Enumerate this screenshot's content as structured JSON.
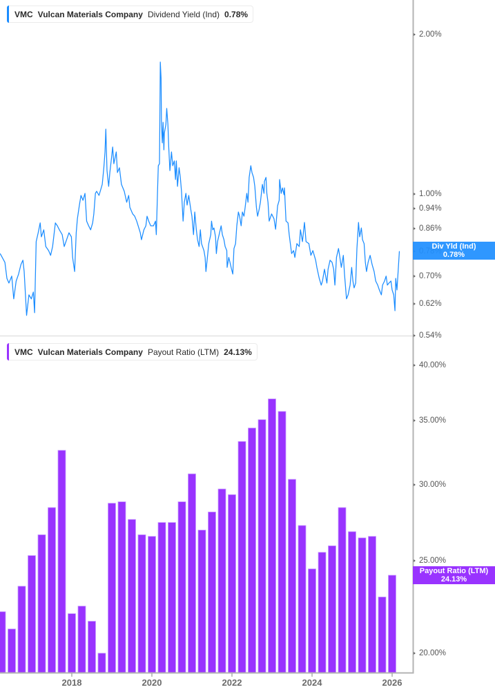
{
  "panels": [
    {
      "legend": {
        "ticker": "VMC",
        "company": "Vulcan Materials Company",
        "metric": "Dividend Yield (Ind)",
        "value": "0.78%"
      },
      "flag": {
        "label": "Div Yld (Ind)",
        "value": "0.78%"
      }
    },
    {
      "legend": {
        "ticker": "VMC",
        "company": "Vulcan Materials Company",
        "metric": "Payout Ratio (LTM)",
        "value": "24.13%"
      },
      "flag": {
        "label": "Payout Ratio (LTM)",
        "value": "24.13%"
      }
    }
  ],
  "colors": {
    "dividend_yield": "#1a8cff",
    "dividend_yield_flag": "rgba(31,143,255,0.93)",
    "payout_ratio": "#9933ff",
    "payout_ratio_border": "#c79cff",
    "payout_ratio_flag": "#9933ff"
  },
  "chart_data": [
    {
      "type": "line",
      "title": "VMC Vulcan Materials Company Dividend Yield (Ind) 0.78%",
      "series_name": "Dividend Yield (Ind)",
      "xlabel": "",
      "ylabel": "",
      "y_scale": "log",
      "xlim": [
        2016.207,
        2026.517
      ],
      "ylim": [
        0.54,
        2.325
      ],
      "grid": false,
      "legend_position": "top-left",
      "yticks": [
        {
          "value": 2.0,
          "label": "2.00%"
        },
        {
          "value": 1.0,
          "label": "1.00%"
        },
        {
          "value": 0.94,
          "label": "0.94%"
        },
        {
          "value": 0.86,
          "label": "0.86%"
        },
        {
          "value": 0.78,
          "label": "0.78%"
        },
        {
          "value": 0.7,
          "label": "0.70%"
        },
        {
          "value": 0.62,
          "label": "0.62%"
        },
        {
          "value": 0.54,
          "label": "0.54%"
        }
      ],
      "last_value": 0.78,
      "x": [
        2016.21,
        2016.33,
        2016.38,
        2016.43,
        2016.5,
        2016.55,
        2016.61,
        2016.67,
        2016.73,
        2016.78,
        2016.81,
        2016.87,
        2016.93,
        2016.99,
        2017.04,
        2017.07,
        2017.11,
        2017.16,
        2017.21,
        2017.24,
        2017.3,
        2017.35,
        2017.42,
        2017.47,
        2017.52,
        2017.59,
        2017.64,
        2017.69,
        2017.76,
        2017.81,
        2017.87,
        2017.93,
        2017.99,
        2018.02,
        2018.07,
        2018.11,
        2018.14,
        2018.19,
        2018.23,
        2018.28,
        2018.33,
        2018.37,
        2018.42,
        2018.47,
        2018.52,
        2018.55,
        2018.59,
        2018.62,
        2018.68,
        2018.71,
        2018.76,
        2018.8,
        2018.83,
        2018.85,
        2018.88,
        2018.92,
        2018.95,
        2018.99,
        2019.02,
        2019.05,
        2019.11,
        2019.14,
        2019.19,
        2019.24,
        2019.31,
        2019.37,
        2019.42,
        2019.45,
        2019.52,
        2019.57,
        2019.62,
        2019.71,
        2019.74,
        2019.8,
        2019.85,
        2019.88,
        2019.92,
        2019.97,
        2020.04,
        2020.09,
        2020.11,
        2020.14,
        2020.16,
        2020.19,
        2020.21,
        2020.23,
        2020.24,
        2020.26,
        2020.28,
        2020.3,
        2020.31,
        2020.35,
        2020.37,
        2020.4,
        2020.42,
        2020.45,
        2020.49,
        2020.52,
        2020.56,
        2020.59,
        2020.61,
        2020.64,
        2020.68,
        2020.71,
        2020.74,
        2020.78,
        2020.81,
        2020.85,
        2020.88,
        2020.92,
        2020.97,
        2021.0,
        2021.04,
        2021.07,
        2021.11,
        2021.14,
        2021.18,
        2021.21,
        2021.24,
        2021.3,
        2021.33,
        2021.35,
        2021.38,
        2021.42,
        2021.47,
        2021.49,
        2021.52,
        2021.55,
        2021.59,
        2021.61,
        2021.64,
        2021.68,
        2021.73,
        2021.76,
        2021.8,
        2021.83,
        2021.87,
        2021.88,
        2021.92,
        2021.95,
        2021.99,
        2022.02,
        2022.05,
        2022.09,
        2022.12,
        2022.16,
        2022.19,
        2022.23,
        2022.26,
        2022.3,
        2022.33,
        2022.37,
        2022.4,
        2022.43,
        2022.47,
        2022.5,
        2022.54,
        2022.57,
        2022.61,
        2022.64,
        2022.68,
        2022.71,
        2022.76,
        2022.8,
        2022.81,
        2022.85,
        2022.87,
        2022.9,
        2022.93,
        2022.99,
        2023.05,
        2023.09,
        2023.14,
        2023.18,
        2023.19,
        2023.23,
        2023.26,
        2023.3,
        2023.31,
        2023.35,
        2023.4,
        2023.43,
        2023.49,
        2023.54,
        2023.57,
        2023.62,
        2023.68,
        2023.71,
        2023.76,
        2023.81,
        2023.85,
        2023.92,
        2023.97,
        2024.02,
        2024.09,
        2024.12,
        2024.18,
        2024.23,
        2024.26,
        2024.31,
        2024.37,
        2024.4,
        2024.45,
        2024.5,
        2024.54,
        2024.57,
        2024.61,
        2024.66,
        2024.68,
        2024.73,
        2024.78,
        2024.81,
        2024.86,
        2024.9,
        2024.95,
        2024.99,
        2025.02,
        2025.05,
        2025.09,
        2025.12,
        2025.16,
        2025.19,
        2025.23,
        2025.26,
        2025.3,
        2025.33,
        2025.36,
        2025.4,
        2025.45,
        2025.5,
        2025.55,
        2025.59,
        2025.64,
        2025.68,
        2025.73,
        2025.76,
        2025.81,
        2025.85,
        2025.88,
        2025.92,
        2025.97,
        2026.0,
        2026.04,
        2026.07,
        2026.09,
        2026.12,
        2026.16,
        2026.18
      ],
      "values": [
        0.772,
        0.743,
        0.693,
        0.679,
        0.7,
        0.634,
        0.685,
        0.706,
        0.736,
        0.75,
        0.714,
        0.59,
        0.645,
        0.634,
        0.653,
        0.597,
        0.813,
        0.845,
        0.882,
        0.83,
        0.856,
        0.796,
        0.782,
        0.766,
        0.796,
        0.882,
        0.871,
        0.856,
        0.838,
        0.796,
        0.82,
        0.845,
        0.83,
        0.759,
        0.714,
        0.845,
        0.898,
        0.953,
        0.994,
        0.973,
        1.003,
        0.889,
        0.871,
        0.856,
        0.882,
        0.917,
        1.003,
        1.012,
        0.994,
        1.012,
        1.043,
        1.121,
        1.201,
        1.326,
        1.107,
        1.034,
        1.098,
        1.166,
        1.227,
        1.141,
        1.201,
        1.098,
        1.121,
        1.043,
        1.012,
        0.965,
        0.994,
        0.944,
        0.917,
        0.908,
        0.889,
        0.845,
        0.82,
        0.856,
        0.871,
        0.908,
        0.889,
        0.871,
        0.871,
        0.889,
        0.838,
        1.003,
        1.131,
        1.141,
        1.775,
        1.656,
        1.354,
        1.249,
        1.366,
        1.212,
        1.302,
        1.354,
        1.451,
        1.354,
        1.227,
        1.107,
        1.201,
        1.131,
        1.155,
        1.065,
        1.155,
        1.034,
        1.121,
        1.075,
        1.012,
        0.889,
        0.965,
        1.003,
        0.953,
        0.994,
        0.936,
        0.908,
        0.838,
        0.925,
        0.856,
        0.82,
        0.796,
        0.856,
        0.806,
        0.782,
        0.759,
        0.714,
        0.75,
        0.806,
        0.838,
        0.889,
        0.856,
        0.863,
        0.83,
        0.772,
        0.813,
        0.838,
        0.871,
        0.838,
        0.82,
        0.796,
        0.782,
        0.727,
        0.759,
        0.743,
        0.721,
        0.706,
        0.789,
        0.806,
        0.871,
        0.925,
        0.908,
        0.871,
        0.925,
        0.908,
        0.944,
        1.003,
        0.965,
        1.075,
        1.131,
        1.098,
        1.075,
        1.034,
        0.944,
        0.908,
        0.936,
        0.965,
        1.043,
        1.003,
        1.056,
        1.075,
        1.003,
        0.965,
        0.889,
        0.917,
        0.898,
        0.858,
        0.95,
        0.973,
        1.065,
        1.003,
        1.027,
        0.997,
        1.027,
        0.889,
        0.882,
        0.838,
        0.772,
        0.782,
        0.759,
        0.806,
        0.796,
        0.856,
        0.813,
        0.884,
        0.813,
        0.806,
        0.766,
        0.782,
        0.75,
        0.727,
        0.693,
        0.673,
        0.685,
        0.721,
        0.679,
        0.721,
        0.75,
        0.743,
        0.721,
        0.673,
        0.759,
        0.789,
        0.772,
        0.727,
        0.766,
        0.706,
        0.634,
        0.645,
        0.673,
        0.727,
        0.685,
        0.665,
        0.679,
        0.789,
        0.884,
        0.83,
        0.863,
        0.82,
        0.806,
        0.743,
        0.714,
        0.743,
        0.766,
        0.736,
        0.714,
        0.685,
        0.673,
        0.659,
        0.645,
        0.673,
        0.685,
        0.7,
        0.673,
        0.679,
        0.685,
        0.659,
        0.645,
        0.602,
        0.693,
        0.659,
        0.736,
        0.78
      ]
    },
    {
      "type": "bar",
      "title": "VMC Vulcan Materials Company Payout Ratio (LTM) 24.13%",
      "series_name": "Payout Ratio (LTM)",
      "xlabel": "",
      "ylabel": "",
      "y_scale": "log",
      "xlim": [
        2016.207,
        2026.517
      ],
      "ylim": [
        19.07,
        42.9
      ],
      "grid": false,
      "legend_position": "top-left",
      "yticks": [
        {
          "value": 40,
          "label": "40.00%"
        },
        {
          "value": 35,
          "label": "35.00%"
        },
        {
          "value": 30,
          "label": "30.00%"
        },
        {
          "value": 25,
          "label": "25.00%"
        },
        {
          "value": 20,
          "label": "20.00%"
        }
      ],
      "xticks": [
        {
          "value": 2018,
          "label": "2018"
        },
        {
          "value": 2020,
          "label": "2020"
        },
        {
          "value": 2022,
          "label": "2022"
        },
        {
          "value": 2024,
          "label": "2024"
        },
        {
          "value": 2026,
          "label": "2026"
        }
      ],
      "last_value": 24.13,
      "categories": [
        "Q1 2016",
        "Q2 2016",
        "Q3 2016",
        "Q4 2016",
        "Q1 2017",
        "Q2 2017",
        "Q3 2017",
        "Q4 2017",
        "Q1 2018",
        "Q2 2018",
        "Q3 2018",
        "Q4 2018",
        "Q1 2019",
        "Q2 2019",
        "Q3 2019",
        "Q4 2019",
        "Q1 2020",
        "Q2 2020",
        "Q3 2020",
        "Q4 2020",
        "Q1 2021",
        "Q2 2021",
        "Q3 2021",
        "Q4 2021",
        "Q1 2022",
        "Q2 2022",
        "Q3 2022",
        "Q4 2022",
        "Q1 2023",
        "Q2 2023",
        "Q3 2023",
        "Q4 2023",
        "Q1 2024",
        "Q2 2024",
        "Q3 2024",
        "Q4 2024",
        "Q1 2025",
        "Q2 2025",
        "Q3 2025",
        "Q4 2025"
      ],
      "values": [
        22.1,
        21.2,
        23.5,
        25.3,
        26.6,
        28.4,
        32.6,
        22.0,
        22.4,
        21.6,
        20.0,
        28.7,
        28.8,
        27.6,
        26.6,
        26.5,
        27.4,
        27.4,
        28.8,
        30.8,
        26.9,
        28.1,
        29.7,
        29.3,
        33.3,
        34.4,
        35.1,
        36.9,
        35.8,
        30.4,
        27.2,
        24.5,
        25.5,
        25.9,
        28.4,
        26.8,
        26.4,
        26.5,
        22.9,
        24.13
      ]
    }
  ]
}
